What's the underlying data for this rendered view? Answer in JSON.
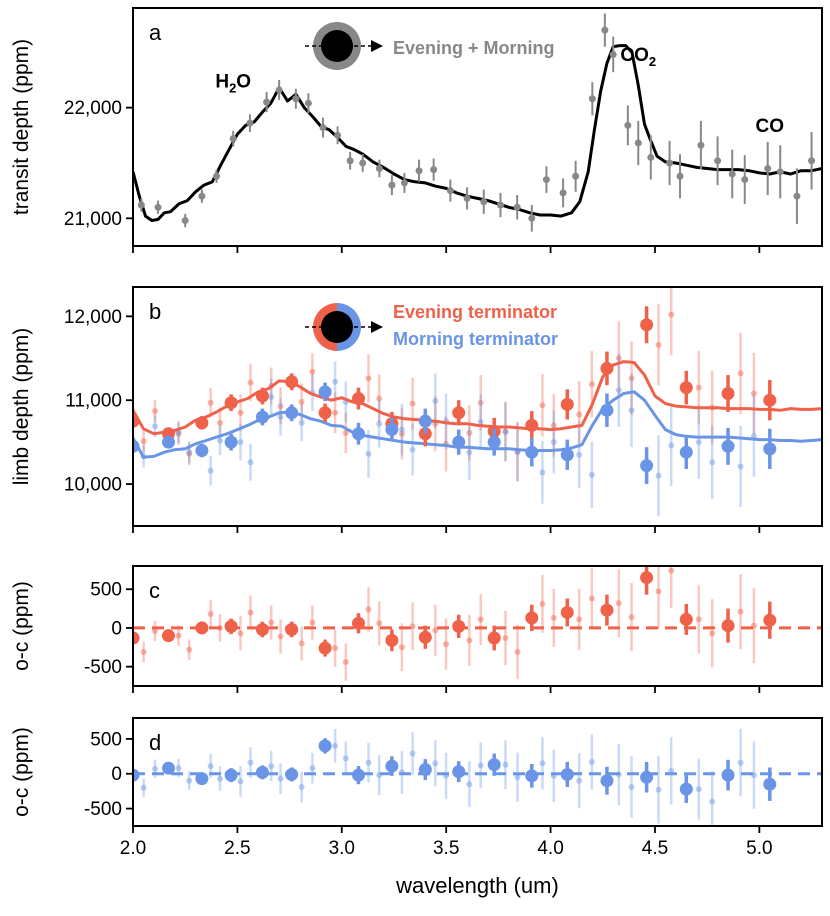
{
  "xlabel": "wavelength (um)",
  "chart_data": [
    {
      "type": "scatter",
      "panel_letter": "a",
      "ylabel": "transit depth (ppm)",
      "xlim": [
        2.0,
        5.3
      ],
      "ylim": [
        20750,
        22900
      ],
      "xticks": [
        "2.0",
        "2.5",
        "3.0",
        "3.5",
        "4.0",
        "4.5",
        "5.0"
      ],
      "xtick_values": [
        2.0,
        2.5,
        3.0,
        3.5,
        4.0,
        4.5,
        5.0
      ],
      "yticks": [
        "21,000",
        "22,000"
      ],
      "ytick_values": [
        21000,
        22000
      ],
      "legend": {
        "label": "Evening + Morning",
        "placement": "top-center",
        "color": "#888888"
      },
      "annotations": [
        {
          "label": "H",
          "sub": "2",
          "tail": "O",
          "x": 2.48,
          "y": 22180
        },
        {
          "label": "CO",
          "sub": "2",
          "tail": "",
          "x": 4.42,
          "y": 22420
        },
        {
          "label": "CO",
          "sub": "",
          "tail": "",
          "x": 5.05,
          "y": 21780
        }
      ],
      "series": [
        {
          "name": "Evening + Morning",
          "kind": "points",
          "color": "#888888",
          "x": [
            2.04,
            2.12,
            2.25,
            2.33,
            2.4,
            2.48,
            2.56,
            2.64,
            2.7,
            2.78,
            2.84,
            2.91,
            2.98,
            3.04,
            3.1,
            3.18,
            3.24,
            3.3,
            3.37,
            3.44,
            3.52,
            3.6,
            3.68,
            3.76,
            3.84,
            3.91,
            3.98,
            4.06,
            4.12,
            4.2,
            4.26,
            4.3,
            4.37,
            4.42,
            4.48,
            4.57,
            4.62,
            4.72,
            4.8,
            4.87,
            4.93,
            5.04,
            5.1,
            5.18,
            5.25
          ],
          "y": [
            21120,
            21100,
            20980,
            21200,
            21380,
            21720,
            21860,
            22050,
            22160,
            22080,
            22040,
            21820,
            21750,
            21520,
            21500,
            21450,
            21300,
            21320,
            21430,
            21440,
            21250,
            21180,
            21150,
            21120,
            21100,
            21000,
            21350,
            21230,
            21380,
            22080,
            22700,
            22480,
            21840,
            21680,
            21550,
            21500,
            21380,
            21660,
            21520,
            21400,
            21350,
            21450,
            21420,
            21200,
            21520
          ],
          "err": [
            60,
            60,
            60,
            60,
            60,
            70,
            80,
            90,
            90,
            90,
            90,
            90,
            80,
            80,
            80,
            80,
            90,
            90,
            100,
            100,
            100,
            100,
            110,
            110,
            110,
            120,
            120,
            130,
            140,
            150,
            150,
            160,
            180,
            200,
            200,
            200,
            200,
            220,
            220,
            220,
            220,
            240,
            240,
            250,
            260
          ]
        },
        {
          "name": "model",
          "kind": "line",
          "color": "#000000",
          "x": [
            2.0,
            2.03,
            2.06,
            2.09,
            2.12,
            2.15,
            2.18,
            2.22,
            2.26,
            2.3,
            2.34,
            2.38,
            2.42,
            2.46,
            2.5,
            2.54,
            2.58,
            2.62,
            2.66,
            2.7,
            2.74,
            2.78,
            2.82,
            2.86,
            2.9,
            2.94,
            2.98,
            3.02,
            3.06,
            3.1,
            3.15,
            3.2,
            3.25,
            3.3,
            3.35,
            3.4,
            3.45,
            3.5,
            3.55,
            3.6,
            3.65,
            3.7,
            3.75,
            3.8,
            3.85,
            3.9,
            3.95,
            4.0,
            4.05,
            4.1,
            4.14,
            4.18,
            4.21,
            4.24,
            4.27,
            4.3,
            4.33,
            4.36,
            4.39,
            4.42,
            4.45,
            4.48,
            4.51,
            4.55,
            4.6,
            4.65,
            4.7,
            4.75,
            4.8,
            4.85,
            4.9,
            4.95,
            5.0,
            5.05,
            5.1,
            5.15,
            5.2,
            5.25,
            5.3
          ],
          "y": [
            21420,
            21200,
            21020,
            20980,
            20990,
            21050,
            21060,
            21130,
            21160,
            21240,
            21300,
            21330,
            21480,
            21620,
            21760,
            21840,
            21870,
            21960,
            22040,
            22180,
            22060,
            22120,
            22000,
            21920,
            21830,
            21800,
            21730,
            21650,
            21620,
            21580,
            21510,
            21460,
            21400,
            21350,
            21330,
            21320,
            21290,
            21270,
            21230,
            21200,
            21180,
            21160,
            21130,
            21100,
            21080,
            21050,
            21030,
            21030,
            21020,
            21050,
            21150,
            21420,
            21800,
            22150,
            22400,
            22550,
            22560,
            22560,
            22500,
            22200,
            21850,
            21700,
            21560,
            21510,
            21500,
            21480,
            21460,
            21450,
            21440,
            21440,
            21440,
            21430,
            21410,
            21400,
            21420,
            21400,
            21430,
            21430,
            21450
          ]
        }
      ]
    },
    {
      "type": "scatter",
      "panel_letter": "b",
      "ylabel": "limb depth (ppm)",
      "xlim": [
        2.0,
        5.3
      ],
      "ylim": [
        9500,
        12350
      ],
      "xticks": [
        "2.0",
        "2.5",
        "3.0",
        "3.5",
        "4.0",
        "4.5",
        "5.0"
      ],
      "xtick_values": [
        2.0,
        2.5,
        3.0,
        3.5,
        4.0,
        4.5,
        5.0
      ],
      "yticks": [
        "10,000",
        "11,000",
        "12,000"
      ],
      "ytick_values": [
        10000,
        11000,
        12000
      ],
      "legend": [
        {
          "label": "Evening terminator",
          "color": "#f0614a"
        },
        {
          "label": "Morning terminator",
          "color": "#6a95e6"
        }
      ],
      "series": [
        {
          "name": "Evening terminator",
          "kind": "points",
          "color": "#f0614a",
          "x": [
            2.0,
            2.17,
            2.33,
            2.47,
            2.62,
            2.76,
            2.92,
            3.08,
            3.24,
            3.4,
            3.56,
            3.73,
            3.91,
            4.08,
            4.27,
            4.46,
            4.65,
            4.85,
            5.05
          ],
          "y": [
            10750,
            10600,
            10730,
            10970,
            11050,
            11220,
            10850,
            11020,
            10720,
            10600,
            10850,
            10630,
            10700,
            10950,
            11380,
            11900,
            11150,
            11080,
            11000
          ],
          "err": [
            60,
            60,
            80,
            100,
            100,
            100,
            110,
            130,
            140,
            150,
            150,
            160,
            170,
            180,
            200,
            220,
            200,
            220,
            240
          ]
        },
        {
          "name": "Morning terminator",
          "kind": "points",
          "color": "#6a95e6",
          "x": [
            2.0,
            2.17,
            2.33,
            2.47,
            2.62,
            2.76,
            2.92,
            3.08,
            3.24,
            3.4,
            3.56,
            3.73,
            3.91,
            4.08,
            4.27,
            4.46,
            4.65,
            4.85,
            5.05
          ],
          "y": [
            10450,
            10500,
            10400,
            10500,
            10800,
            10850,
            11100,
            10600,
            10650,
            10750,
            10500,
            10500,
            10380,
            10350,
            10880,
            10220,
            10380,
            10450,
            10420
          ],
          "err": [
            60,
            60,
            80,
            100,
            100,
            100,
            110,
            130,
            140,
            150,
            150,
            160,
            170,
            180,
            200,
            220,
            200,
            220,
            240
          ]
        },
        {
          "name": "Evening terminator model",
          "kind": "line",
          "color": "#f0614a",
          "x": [
            2.0,
            2.05,
            2.1,
            2.15,
            2.2,
            2.25,
            2.3,
            2.35,
            2.4,
            2.45,
            2.5,
            2.55,
            2.6,
            2.65,
            2.7,
            2.75,
            2.8,
            2.85,
            2.9,
            2.95,
            3.0,
            3.05,
            3.1,
            3.15,
            3.2,
            3.25,
            3.3,
            3.35,
            3.4,
            3.45,
            3.5,
            3.55,
            3.6,
            3.65,
            3.7,
            3.75,
            3.8,
            3.85,
            3.9,
            3.95,
            4.0,
            4.05,
            4.1,
            4.15,
            4.2,
            4.25,
            4.3,
            4.35,
            4.4,
            4.45,
            4.5,
            4.55,
            4.6,
            4.65,
            4.7,
            4.75,
            4.8,
            4.85,
            4.9,
            4.95,
            5.0,
            5.05,
            5.1,
            5.15,
            5.2,
            5.25,
            5.3
          ],
          "y": [
            10880,
            10660,
            10600,
            10620,
            10640,
            10680,
            10760,
            10800,
            10860,
            10930,
            10980,
            11020,
            11100,
            11140,
            11230,
            11220,
            11160,
            11080,
            11040,
            11000,
            11030,
            10980,
            10960,
            10900,
            10840,
            10800,
            10780,
            10770,
            10760,
            10750,
            10730,
            10720,
            10720,
            10700,
            10690,
            10680,
            10680,
            10670,
            10660,
            10660,
            10650,
            10660,
            10680,
            10700,
            10950,
            11280,
            11420,
            11460,
            11450,
            11300,
            11050,
            10960,
            10930,
            10920,
            10910,
            10910,
            10910,
            10900,
            10900,
            10900,
            10890,
            10890,
            10880,
            10900,
            10890,
            10890,
            10900
          ]
        },
        {
          "name": "Morning terminator model",
          "kind": "line",
          "color": "#6a95e6",
          "x": [
            2.0,
            2.05,
            2.1,
            2.15,
            2.2,
            2.25,
            2.3,
            2.35,
            2.4,
            2.45,
            2.5,
            2.55,
            2.6,
            2.65,
            2.7,
            2.75,
            2.8,
            2.85,
            2.9,
            2.95,
            3.0,
            3.05,
            3.1,
            3.15,
            3.2,
            3.25,
            3.3,
            3.35,
            3.4,
            3.45,
            3.5,
            3.55,
            3.6,
            3.65,
            3.7,
            3.75,
            3.8,
            3.85,
            3.9,
            3.95,
            4.0,
            4.05,
            4.1,
            4.15,
            4.2,
            4.25,
            4.3,
            4.35,
            4.4,
            4.45,
            4.5,
            4.55,
            4.6,
            4.65,
            4.7,
            4.75,
            4.8,
            4.85,
            4.9,
            4.95,
            5.0,
            5.05,
            5.1,
            5.15,
            5.2,
            5.25,
            5.3
          ],
          "y": [
            10550,
            10320,
            10330,
            10380,
            10410,
            10420,
            10480,
            10520,
            10560,
            10600,
            10650,
            10700,
            10760,
            10800,
            10850,
            10860,
            10830,
            10780,
            10750,
            10700,
            10690,
            10620,
            10580,
            10560,
            10540,
            10520,
            10500,
            10490,
            10480,
            10470,
            10460,
            10440,
            10440,
            10430,
            10420,
            10420,
            10420,
            10410,
            10400,
            10400,
            10400,
            10410,
            10430,
            10470,
            10700,
            10900,
            11000,
            11080,
            11100,
            11000,
            10820,
            10650,
            10590,
            10570,
            10560,
            10560,
            10560,
            10560,
            10550,
            10540,
            10530,
            10530,
            10520,
            10520,
            10510,
            10520,
            10530
          ]
        }
      ]
    },
    {
      "type": "scatter",
      "panel_letter": "c",
      "ylabel": "o-c (ppm)",
      "xlim": [
        2.0,
        5.3
      ],
      "ylim": [
        -750,
        800
      ],
      "xticks": [
        "2.0",
        "2.5",
        "3.0",
        "3.5",
        "4.0",
        "4.5",
        "5.0"
      ],
      "xtick_values": [
        2.0,
        2.5,
        3.0,
        3.5,
        4.0,
        4.5,
        5.0
      ],
      "yticks": [
        "500",
        "0",
        "-500"
      ],
      "ytick_values": [
        500,
        0,
        -500
      ],
      "series": [
        {
          "name": "Evening terminator residuals",
          "kind": "points",
          "color": "#f0614a",
          "x": [
            2.0,
            2.17,
            2.33,
            2.47,
            2.62,
            2.76,
            2.92,
            3.08,
            3.24,
            3.4,
            3.56,
            3.73,
            3.91,
            4.08,
            4.27,
            4.46,
            4.65,
            4.85,
            5.05
          ],
          "y": [
            -130,
            -100,
            0,
            20,
            -20,
            -20,
            -260,
            60,
            -160,
            -120,
            20,
            -130,
            130,
            200,
            230,
            650,
            110,
            30,
            100
          ],
          "err": [
            60,
            60,
            80,
            100,
            100,
            100,
            110,
            130,
            140,
            150,
            150,
            160,
            170,
            180,
            200,
            220,
            200,
            220,
            240
          ]
        }
      ]
    },
    {
      "type": "scatter",
      "panel_letter": "d",
      "ylabel": "o-c (ppm)",
      "xlim": [
        2.0,
        5.3
      ],
      "ylim": [
        -750,
        800
      ],
      "xticks": [
        "2.0",
        "2.5",
        "3.0",
        "3.5",
        "4.0",
        "4.5",
        "5.0"
      ],
      "xtick_values": [
        2.0,
        2.5,
        3.0,
        3.5,
        4.0,
        4.5,
        5.0
      ],
      "yticks": [
        "500",
        "0",
        "-500"
      ],
      "ytick_values": [
        500,
        0,
        -500
      ],
      "series": [
        {
          "name": "Morning terminator residuals",
          "kind": "points",
          "color": "#6a95e6",
          "x": [
            2.0,
            2.17,
            2.33,
            2.47,
            2.62,
            2.76,
            2.92,
            3.08,
            3.24,
            3.4,
            3.56,
            3.73,
            3.91,
            4.08,
            4.27,
            4.46,
            4.65,
            4.85,
            5.05
          ],
          "y": [
            -20,
            80,
            -70,
            -20,
            20,
            -10,
            400,
            -20,
            110,
            60,
            30,
            130,
            -30,
            -10,
            -100,
            -50,
            -220,
            -20,
            -150
          ],
          "err": [
            60,
            60,
            80,
            100,
            100,
            100,
            110,
            130,
            140,
            150,
            150,
            160,
            170,
            180,
            200,
            220,
            200,
            220,
            240
          ]
        }
      ]
    }
  ]
}
